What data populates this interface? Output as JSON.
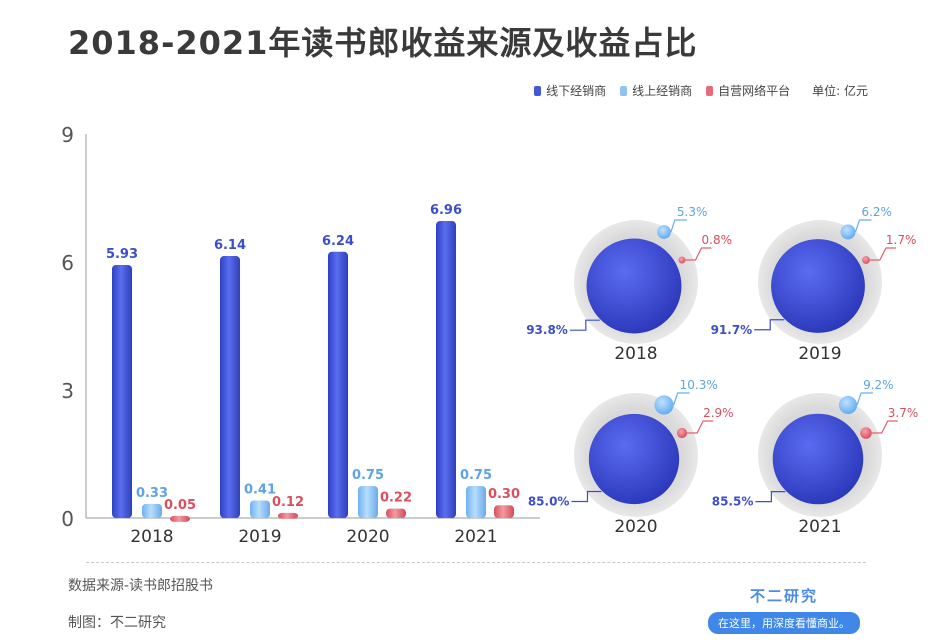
{
  "title": "2018-2021年读书郎收益来源及收益占比",
  "legend": {
    "items": [
      {
        "label": "线下经销商",
        "color": "#4457d9"
      },
      {
        "label": "线上经销商",
        "color": "#8cc4f6"
      },
      {
        "label": "自营网络平台",
        "color": "#ea6b78"
      }
    ],
    "unit": "单位: 亿元"
  },
  "chart_data": [
    {
      "type": "bar",
      "categories": [
        "2018",
        "2019",
        "2020",
        "2021"
      ],
      "series": [
        {
          "name": "线下经销商",
          "values": [
            5.93,
            6.14,
            6.24,
            6.96
          ],
          "labels": [
            "5.93",
            "6.14",
            "6.24",
            "6.96"
          ],
          "color": "#4457d9"
        },
        {
          "name": "线上经销商",
          "values": [
            0.33,
            0.41,
            0.75,
            0.75
          ],
          "labels": [
            "0.33",
            "0.41",
            "0.75",
            "0.75"
          ],
          "color": "#8cc4f6"
        },
        {
          "name": "自营网络平台",
          "values": [
            0.05,
            0.12,
            0.22,
            0.3
          ],
          "labels": [
            "0.05",
            "0.12",
            "0.22",
            "0.30"
          ],
          "color": "#ea6b78"
        }
      ],
      "ylim": [
        0,
        9
      ],
      "yticks": [
        "0",
        "3",
        "6",
        "9"
      ],
      "xlabel": "",
      "ylabel": ""
    },
    {
      "type": "pie",
      "description_style": "bubble proportions",
      "charts": [
        {
          "year": "2018",
          "labels": [
            "93.8%",
            "5.3%",
            "0.8%"
          ],
          "values": [
            93.8,
            5.3,
            0.8
          ]
        },
        {
          "year": "2019",
          "labels": [
            "91.7%",
            "6.2%",
            "1.7%"
          ],
          "values": [
            91.7,
            6.2,
            1.7
          ]
        },
        {
          "year": "2020",
          "labels": [
            "85.0%",
            "10.3%",
            "2.9%"
          ],
          "values": [
            85.0,
            10.3,
            2.9
          ]
        },
        {
          "year": "2021",
          "labels": [
            "85.5%",
            "9.2%",
            "3.7%"
          ],
          "values": [
            85.5,
            9.2,
            3.7
          ]
        }
      ]
    }
  ],
  "footer": {
    "source": "数据来源-读书郎招股书",
    "maker": "制图：不二研究"
  },
  "brand": {
    "name": "不二研究",
    "slogan": "在这里，用深度看懂商业。"
  }
}
